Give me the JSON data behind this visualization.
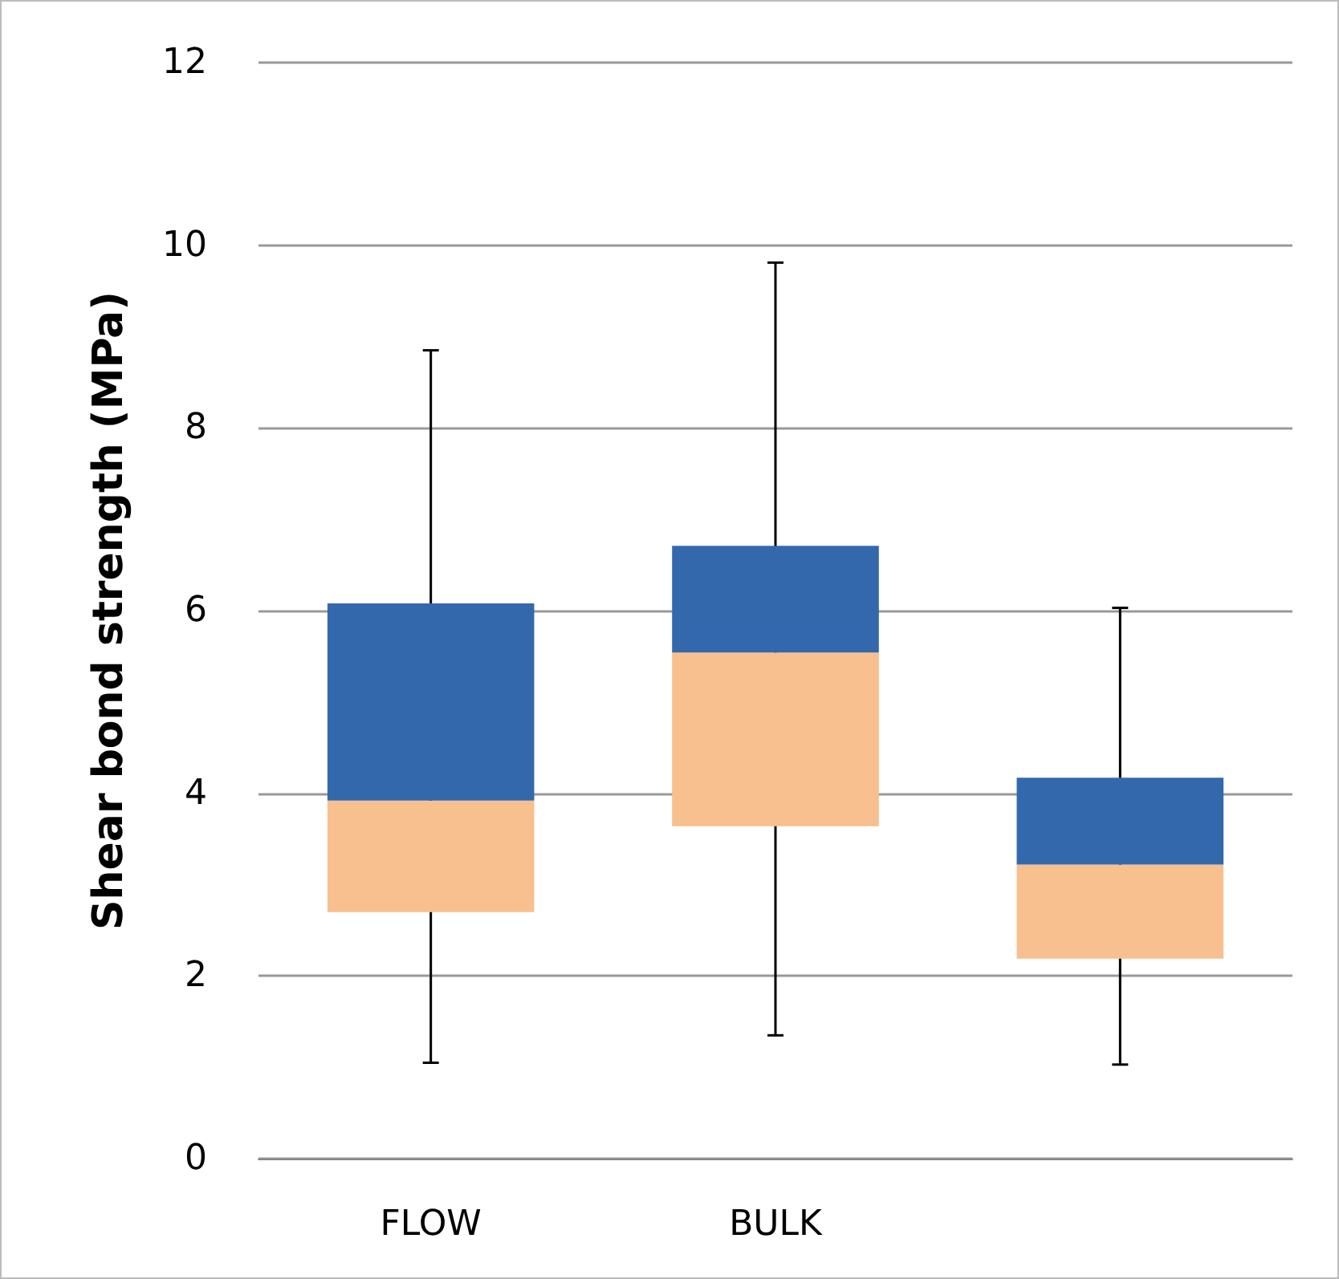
{
  "chart_data": {
    "type": "box",
    "ylabel": "Shear bond strength (MPa)",
    "categories": [
      "FLOW",
      "BULK",
      null
    ],
    "boxes": [
      {
        "low": 1.05,
        "q1": 2.7,
        "median": 3.92,
        "q3": 6.08,
        "high": 8.85
      },
      {
        "low": 1.35,
        "q1": 3.64,
        "median": 5.54,
        "q3": 6.71,
        "high": 9.81
      },
      {
        "low": 1.03,
        "q1": 2.19,
        "median": 3.22,
        "q3": 4.17,
        "high": 6.03
      }
    ],
    "color": "#3468ad",
    "colors": [
      "#f8c08f",
      "#f8c08f",
      "#f8c08f"
    ],
    "ylim": [
      0,
      12
    ],
    "yticks": [
      0,
      2,
      4,
      6,
      8,
      10,
      12
    ],
    "grid": "y"
  }
}
